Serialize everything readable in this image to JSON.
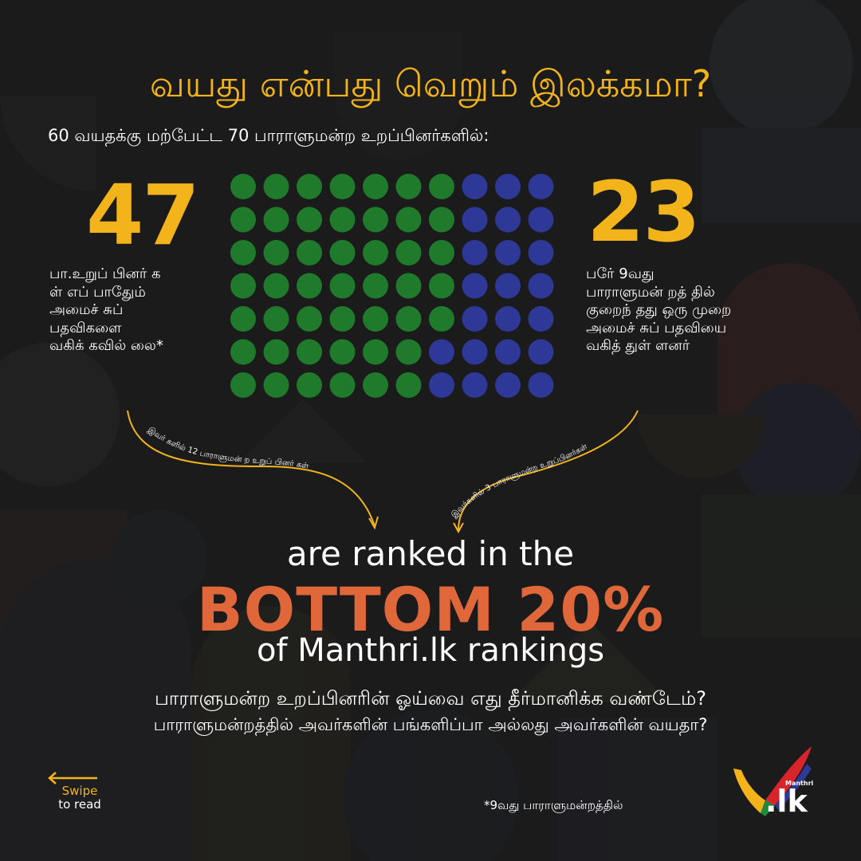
{
  "title": "வயது என்பது வெறும் இலக்கமா?",
  "subtitle": "60 வயதக்கு மற்பேட்ட 70 பாராளுமன்ற உறப்பினர்களில்:",
  "left_stat": {
    "number": "47",
    "description": "பா.உறுப் பினர் க\nள் எப் பாதேும்\nஅமைச் சுப்\nபதவிகளை\nவகிக் கவில் லை*"
  },
  "right_stat": {
    "number": "23",
    "description": "பரே் 9வது\nபாராளுமன் றத் தில்\nகுறைந் தது ஒரு முறை\nஅமைச் சுப் பதவியை\nவகித் துள் ளனர்"
  },
  "dot_grid": {
    "rows": 7,
    "cols": 10,
    "green_count": 47,
    "blue_count": 23,
    "green_color": "#1f7a2c",
    "blue_color": "#2e3896"
  },
  "arrow_labels": {
    "left": "இவர் களில் 12 பாராளுமன் ற உறுப் பினர் கள்",
    "right": "இவர்களில் 3 பாராளுமன்ற உறுப்பினர்கள்"
  },
  "headline": {
    "line1": "are ranked in the",
    "line2": "BOTTOM 20%",
    "line3": "of Manthri.lk rankings"
  },
  "question": {
    "line1": "பாராளுமன்ற உறப்பினரின் ஓய்வை எது தீர்மானிக்க வண்டேம்?",
    "line2": "பாராளுமன்றத்தில் அவர்களின் பங்களிப்பா அல்லது அவர்களின் வயதா?"
  },
  "swipe": {
    "line1": "Swipe",
    "line2": "to read"
  },
  "footnote": "*9வது பாராளுமன்றத்தில்",
  "logo": {
    "small": "Manthri",
    "big": ".lk"
  },
  "colors": {
    "accent_yellow": "#f3b41b",
    "accent_orange": "#e0673a",
    "background": "#1a1a1b"
  }
}
